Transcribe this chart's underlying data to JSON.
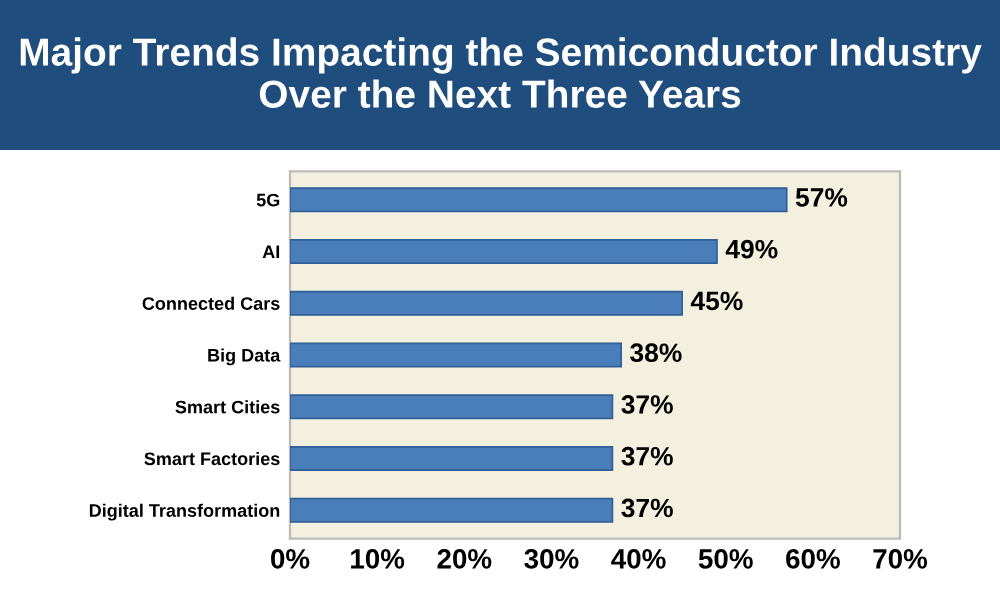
{
  "chart_data": {
    "type": "bar",
    "orientation": "horizontal",
    "title": "Major Trends Impacting the Semiconductor Industry Over the Next Three Years",
    "categories": [
      "5G",
      "AI",
      "Connected Cars",
      "Big Data",
      "Smart Cities",
      "Smart Factories",
      "Digital Transformation"
    ],
    "values": [
      57,
      49,
      45,
      38,
      37,
      37,
      37
    ],
    "value_labels": [
      "57%",
      "49%",
      "45%",
      "38%",
      "37%",
      "37%",
      "37%"
    ],
    "color": "#4a7ebb",
    "xlim": [
      0,
      70
    ],
    "xticks": [
      {
        "value": 0,
        "label": "0%"
      },
      {
        "value": 10,
        "label": "10%"
      },
      {
        "value": 20,
        "label": "20%"
      },
      {
        "value": 30,
        "label": "30%"
      },
      {
        "value": 40,
        "label": "40%"
      },
      {
        "value": 50,
        "label": "50%"
      },
      {
        "value": 60,
        "label": "60%"
      },
      {
        "value": 70,
        "label": "70%"
      }
    ],
    "grid": false
  }
}
